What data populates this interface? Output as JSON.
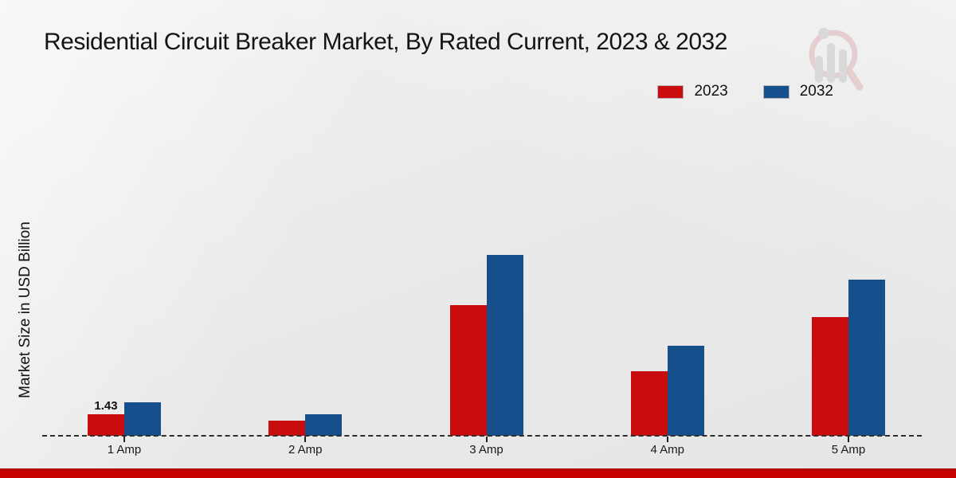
{
  "title": "Residential Circuit Breaker Market, By Rated Current, 2023 & 2032",
  "y_axis_label": "Market Size in USD Billion",
  "legend": {
    "items": [
      {
        "label": "2023",
        "color": "#c90d0e"
      },
      {
        "label": "2032",
        "color": "#15508d"
      }
    ]
  },
  "chart_data": {
    "type": "bar",
    "title": "Residential Circuit Breaker Market, By Rated Current, 2023 & 2032",
    "categories": [
      "1 Amp",
      "2 Amp",
      "3 Amp",
      "4 Amp",
      "5 Amp"
    ],
    "series": [
      {
        "name": "2023",
        "color": "#c90d0e",
        "values": [
          1.43,
          1.0,
          8.7,
          4.3,
          7.9
        ]
      },
      {
        "name": "2032",
        "color": "#15508d",
        "values": [
          2.2,
          1.43,
          12.0,
          6.0,
          10.4
        ]
      }
    ],
    "bar_labels": {
      "2023": [
        "1.43",
        "",
        "",
        "",
        ""
      ]
    },
    "xlabel": "",
    "ylabel": "Market Size in USD Billion",
    "ylim": [
      0,
      13
    ],
    "grid": false,
    "y_axis_ticks_visible": false,
    "baseline_style": "dashed",
    "legend_position": "top-right"
  },
  "footer": {
    "band_color": "#c40000"
  },
  "watermark": {
    "name": "market-research-logo",
    "circle_color": "#ddb4b6",
    "bars_color": "#c8c8c8"
  }
}
